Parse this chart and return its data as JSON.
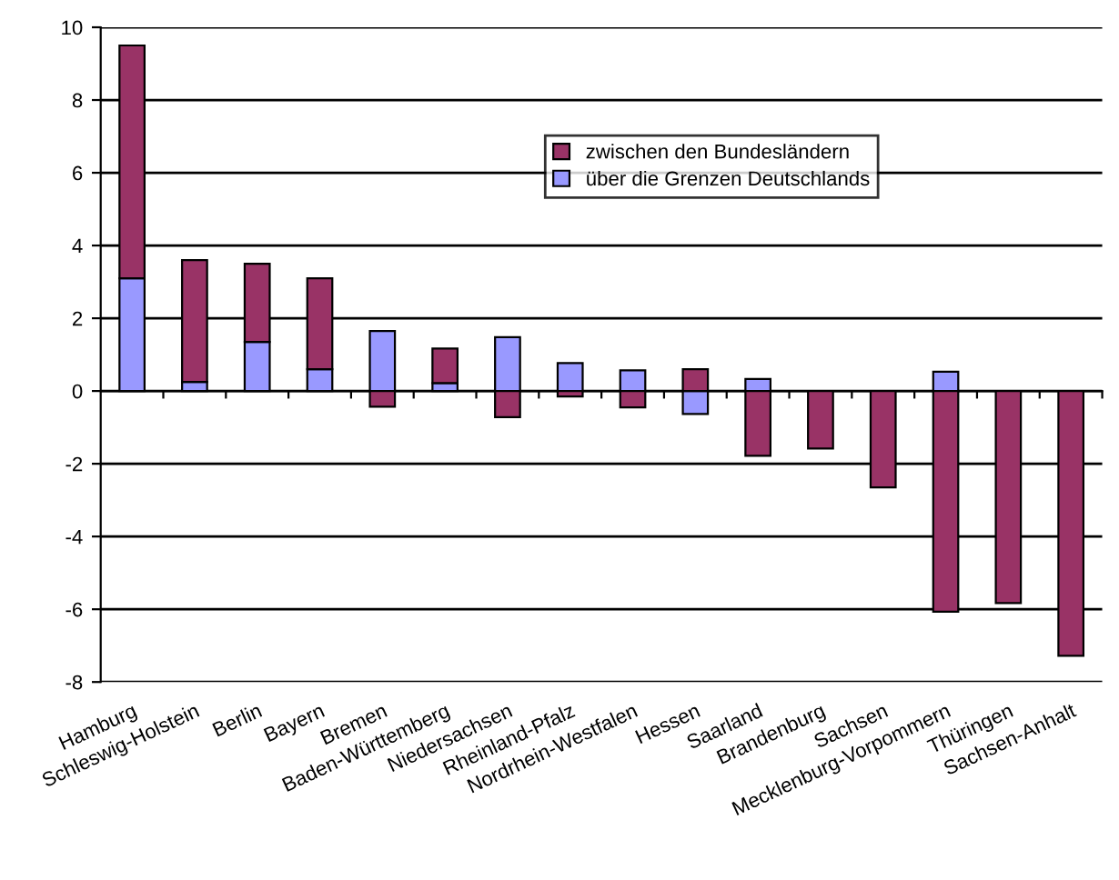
{
  "chart_data": {
    "type": "bar",
    "stacked": true,
    "categories": [
      "Hamburg",
      "Schleswig-Holstein",
      "Berlin",
      "Bayern",
      "Bremen",
      "Baden-Württemberg",
      "Niedersachsen",
      "Rheinland-Pfalz",
      "Nordrhein-Westfalen",
      "Hessen",
      "Saarland",
      "Brandenburg",
      "Sachsen",
      "Mecklenburg-Vorpommern",
      "Thüringen",
      "Sachsen-Anhalt"
    ],
    "series": [
      {
        "name": "über die Grenzen Deutschlands",
        "color": "#9999ff",
        "values": [
          3.1,
          0.25,
          1.35,
          0.6,
          1.65,
          0.22,
          1.48,
          0.77,
          0.57,
          -0.63,
          0.33,
          null,
          null,
          0.53,
          null,
          null
        ]
      },
      {
        "name": "zwischen den Bundesländern",
        "color": "#993366",
        "values": [
          6.4,
          3.35,
          2.15,
          2.5,
          -0.43,
          0.95,
          -0.72,
          -0.15,
          -0.45,
          0.6,
          -1.78,
          -1.58,
          -2.65,
          -6.07,
          -5.83,
          -7.28
        ]
      }
    ],
    "ylim": [
      -8,
      10
    ],
    "yticks": [
      -8,
      -6,
      -4,
      -2,
      0,
      2,
      4,
      6,
      8,
      10
    ],
    "grid": "y",
    "legend": "top"
  }
}
